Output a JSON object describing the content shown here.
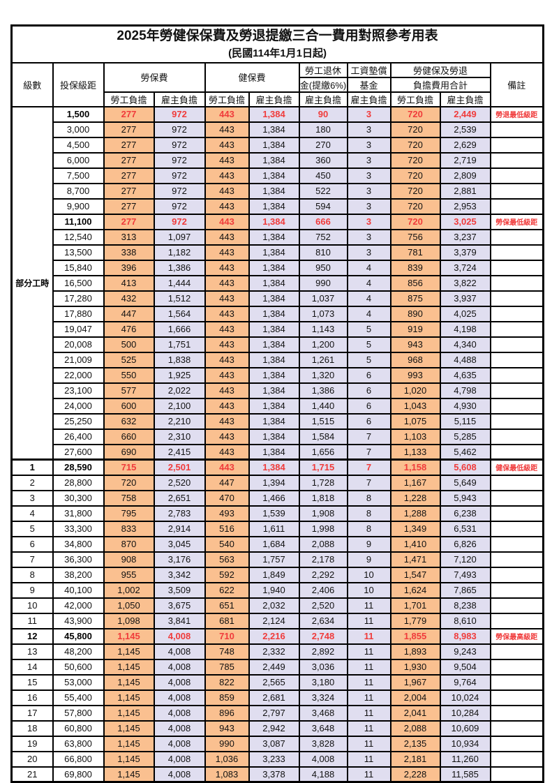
{
  "title": "2025年勞健保保費及勞退提繳三合一費用對照參考用表",
  "subtitle": "(民國114年1月1日起)",
  "colors": {
    "employee_bg": "#FAC090",
    "employer_bg": "#E0DEF0",
    "highlight_red": "#F03B3B"
  },
  "header": {
    "level": "級數",
    "bracket": "投保級距",
    "labor_insurance": "勞保費",
    "health_insurance": "健保費",
    "pension_line1": "勞工退休",
    "pension_line2": "金(提繳6%)",
    "wage_fund_line1": "工資墊償",
    "wage_fund_line2": "基金",
    "total_line1": "勞健保及勞退",
    "total_line2": "負擔費用合計",
    "remark": "備註",
    "employee": "勞工負擔",
    "employer": "雇主負擔"
  },
  "part_time_label": "部分工時",
  "part_time_rowspan": 23,
  "rows": [
    {
      "level": "",
      "bracket": "1,500",
      "li_emp": "277",
      "li_er": "972",
      "hi_emp": "443",
      "hi_er": "1,384",
      "pension": "90",
      "fund": "3",
      "tot_emp": "720",
      "tot_er": "2,449",
      "note": "勞退最低級距",
      "highlight": true,
      "sep": false
    },
    {
      "level": "",
      "bracket": "3,000",
      "li_emp": "277",
      "li_er": "972",
      "hi_emp": "443",
      "hi_er": "1,384",
      "pension": "180",
      "fund": "3",
      "tot_emp": "720",
      "tot_er": "2,539",
      "note": "",
      "highlight": false,
      "sep": false
    },
    {
      "level": "",
      "bracket": "4,500",
      "li_emp": "277",
      "li_er": "972",
      "hi_emp": "443",
      "hi_er": "1,384",
      "pension": "270",
      "fund": "3",
      "tot_emp": "720",
      "tot_er": "2,629",
      "note": "",
      "highlight": false,
      "sep": false
    },
    {
      "level": "",
      "bracket": "6,000",
      "li_emp": "277",
      "li_er": "972",
      "hi_emp": "443",
      "hi_er": "1,384",
      "pension": "360",
      "fund": "3",
      "tot_emp": "720",
      "tot_er": "2,719",
      "note": "",
      "highlight": false,
      "sep": false
    },
    {
      "level": "",
      "bracket": "7,500",
      "li_emp": "277",
      "li_er": "972",
      "hi_emp": "443",
      "hi_er": "1,384",
      "pension": "450",
      "fund": "3",
      "tot_emp": "720",
      "tot_er": "2,809",
      "note": "",
      "highlight": false,
      "sep": false
    },
    {
      "level": "",
      "bracket": "8,700",
      "li_emp": "277",
      "li_er": "972",
      "hi_emp": "443",
      "hi_er": "1,384",
      "pension": "522",
      "fund": "3",
      "tot_emp": "720",
      "tot_er": "2,881",
      "note": "",
      "highlight": false,
      "sep": false
    },
    {
      "level": "",
      "bracket": "9,900",
      "li_emp": "277",
      "li_er": "972",
      "hi_emp": "443",
      "hi_er": "1,384",
      "pension": "594",
      "fund": "3",
      "tot_emp": "720",
      "tot_er": "2,953",
      "note": "",
      "highlight": false,
      "sep": false
    },
    {
      "level": "",
      "bracket": "11,100",
      "li_emp": "277",
      "li_er": "972",
      "hi_emp": "443",
      "hi_er": "1,384",
      "pension": "666",
      "fund": "3",
      "tot_emp": "720",
      "tot_er": "3,025",
      "note": "勞保最低級距",
      "highlight": true,
      "sep": false
    },
    {
      "level": "",
      "bracket": "12,540",
      "li_emp": "313",
      "li_er": "1,097",
      "hi_emp": "443",
      "hi_er": "1,384",
      "pension": "752",
      "fund": "3",
      "tot_emp": "756",
      "tot_er": "3,237",
      "note": "",
      "highlight": false,
      "sep": false
    },
    {
      "level": "",
      "bracket": "13,500",
      "li_emp": "338",
      "li_er": "1,182",
      "hi_emp": "443",
      "hi_er": "1,384",
      "pension": "810",
      "fund": "3",
      "tot_emp": "781",
      "tot_er": "3,379",
      "note": "",
      "highlight": false,
      "sep": false
    },
    {
      "level": "",
      "bracket": "15,840",
      "li_emp": "396",
      "li_er": "1,386",
      "hi_emp": "443",
      "hi_er": "1,384",
      "pension": "950",
      "fund": "4",
      "tot_emp": "839",
      "tot_er": "3,724",
      "note": "",
      "highlight": false,
      "sep": false
    },
    {
      "level": "",
      "bracket": "16,500",
      "li_emp": "413",
      "li_er": "1,444",
      "hi_emp": "443",
      "hi_er": "1,384",
      "pension": "990",
      "fund": "4",
      "tot_emp": "856",
      "tot_er": "3,822",
      "note": "",
      "highlight": false,
      "sep": false
    },
    {
      "level": "",
      "bracket": "17,280",
      "li_emp": "432",
      "li_er": "1,512",
      "hi_emp": "443",
      "hi_er": "1,384",
      "pension": "1,037",
      "fund": "4",
      "tot_emp": "875",
      "tot_er": "3,937",
      "note": "",
      "highlight": false,
      "sep": false
    },
    {
      "level": "",
      "bracket": "17,880",
      "li_emp": "447",
      "li_er": "1,564",
      "hi_emp": "443",
      "hi_er": "1,384",
      "pension": "1,073",
      "fund": "4",
      "tot_emp": "890",
      "tot_er": "4,025",
      "note": "",
      "highlight": false,
      "sep": false
    },
    {
      "level": "",
      "bracket": "19,047",
      "li_emp": "476",
      "li_er": "1,666",
      "hi_emp": "443",
      "hi_er": "1,384",
      "pension": "1,143",
      "fund": "5",
      "tot_emp": "919",
      "tot_er": "4,198",
      "note": "",
      "highlight": false,
      "sep": false
    },
    {
      "level": "",
      "bracket": "20,008",
      "li_emp": "500",
      "li_er": "1,751",
      "hi_emp": "443",
      "hi_er": "1,384",
      "pension": "1,200",
      "fund": "5",
      "tot_emp": "943",
      "tot_er": "4,340",
      "note": "",
      "highlight": false,
      "sep": false
    },
    {
      "level": "",
      "bracket": "21,009",
      "li_emp": "525",
      "li_er": "1,838",
      "hi_emp": "443",
      "hi_er": "1,384",
      "pension": "1,261",
      "fund": "5",
      "tot_emp": "968",
      "tot_er": "4,488",
      "note": "",
      "highlight": false,
      "sep": false
    },
    {
      "level": "",
      "bracket": "22,000",
      "li_emp": "550",
      "li_er": "1,925",
      "hi_emp": "443",
      "hi_er": "1,384",
      "pension": "1,320",
      "fund": "6",
      "tot_emp": "993",
      "tot_er": "4,635",
      "note": "",
      "highlight": false,
      "sep": false
    },
    {
      "level": "",
      "bracket": "23,100",
      "li_emp": "577",
      "li_er": "2,022",
      "hi_emp": "443",
      "hi_er": "1,384",
      "pension": "1,386",
      "fund": "6",
      "tot_emp": "1,020",
      "tot_er": "4,798",
      "note": "",
      "highlight": false,
      "sep": false
    },
    {
      "level": "",
      "bracket": "24,000",
      "li_emp": "600",
      "li_er": "2,100",
      "hi_emp": "443",
      "hi_er": "1,384",
      "pension": "1,440",
      "fund": "6",
      "tot_emp": "1,043",
      "tot_er": "4,930",
      "note": "",
      "highlight": false,
      "sep": false
    },
    {
      "level": "",
      "bracket": "25,250",
      "li_emp": "632",
      "li_er": "2,210",
      "hi_emp": "443",
      "hi_er": "1,384",
      "pension": "1,515",
      "fund": "6",
      "tot_emp": "1,075",
      "tot_er": "5,115",
      "note": "",
      "highlight": false,
      "sep": false
    },
    {
      "level": "",
      "bracket": "26,400",
      "li_emp": "660",
      "li_er": "2,310",
      "hi_emp": "443",
      "hi_er": "1,384",
      "pension": "1,584",
      "fund": "7",
      "tot_emp": "1,103",
      "tot_er": "5,285",
      "note": "",
      "highlight": false,
      "sep": false
    },
    {
      "level": "",
      "bracket": "27,600",
      "li_emp": "690",
      "li_er": "2,415",
      "hi_emp": "443",
      "hi_er": "1,384",
      "pension": "1,656",
      "fund": "7",
      "tot_emp": "1,133",
      "tot_er": "5,462",
      "note": "",
      "highlight": false,
      "sep": false
    },
    {
      "level": "1",
      "bracket": "28,590",
      "li_emp": "715",
      "li_er": "2,501",
      "hi_emp": "443",
      "hi_er": "1,384",
      "pension": "1,715",
      "fund": "7",
      "tot_emp": "1,158",
      "tot_er": "5,608",
      "note": "健保最低級距",
      "highlight": true,
      "sep": true
    },
    {
      "level": "2",
      "bracket": "28,800",
      "li_emp": "720",
      "li_er": "2,520",
      "hi_emp": "447",
      "hi_er": "1,394",
      "pension": "1,728",
      "fund": "7",
      "tot_emp": "1,167",
      "tot_er": "5,649",
      "note": "",
      "highlight": false,
      "sep": false
    },
    {
      "level": "3",
      "bracket": "30,300",
      "li_emp": "758",
      "li_er": "2,651",
      "hi_emp": "470",
      "hi_er": "1,466",
      "pension": "1,818",
      "fund": "8",
      "tot_emp": "1,228",
      "tot_er": "5,943",
      "note": "",
      "highlight": false,
      "sep": false
    },
    {
      "level": "4",
      "bracket": "31,800",
      "li_emp": "795",
      "li_er": "2,783",
      "hi_emp": "493",
      "hi_er": "1,539",
      "pension": "1,908",
      "fund": "8",
      "tot_emp": "1,288",
      "tot_er": "6,238",
      "note": "",
      "highlight": false,
      "sep": false
    },
    {
      "level": "5",
      "bracket": "33,300",
      "li_emp": "833",
      "li_er": "2,914",
      "hi_emp": "516",
      "hi_er": "1,611",
      "pension": "1,998",
      "fund": "8",
      "tot_emp": "1,349",
      "tot_er": "6,531",
      "note": "",
      "highlight": false,
      "sep": false
    },
    {
      "level": "6",
      "bracket": "34,800",
      "li_emp": "870",
      "li_er": "3,045",
      "hi_emp": "540",
      "hi_er": "1,684",
      "pension": "2,088",
      "fund": "9",
      "tot_emp": "1,410",
      "tot_er": "6,826",
      "note": "",
      "highlight": false,
      "sep": false
    },
    {
      "level": "7",
      "bracket": "36,300",
      "li_emp": "908",
      "li_er": "3,176",
      "hi_emp": "563",
      "hi_er": "1,757",
      "pension": "2,178",
      "fund": "9",
      "tot_emp": "1,471",
      "tot_er": "7,120",
      "note": "",
      "highlight": false,
      "sep": false
    },
    {
      "level": "8",
      "bracket": "38,200",
      "li_emp": "955",
      "li_er": "3,342",
      "hi_emp": "592",
      "hi_er": "1,849",
      "pension": "2,292",
      "fund": "10",
      "tot_emp": "1,547",
      "tot_er": "7,493",
      "note": "",
      "highlight": false,
      "sep": false
    },
    {
      "level": "9",
      "bracket": "40,100",
      "li_emp": "1,002",
      "li_er": "3,509",
      "hi_emp": "622",
      "hi_er": "1,940",
      "pension": "2,406",
      "fund": "10",
      "tot_emp": "1,624",
      "tot_er": "7,865",
      "note": "",
      "highlight": false,
      "sep": false
    },
    {
      "level": "10",
      "bracket": "42,000",
      "li_emp": "1,050",
      "li_er": "3,675",
      "hi_emp": "651",
      "hi_er": "2,032",
      "pension": "2,520",
      "fund": "11",
      "tot_emp": "1,701",
      "tot_er": "8,238",
      "note": "",
      "highlight": false,
      "sep": false
    },
    {
      "level": "11",
      "bracket": "43,900",
      "li_emp": "1,098",
      "li_er": "3,841",
      "hi_emp": "681",
      "hi_er": "2,124",
      "pension": "2,634",
      "fund": "11",
      "tot_emp": "1,779",
      "tot_er": "8,610",
      "note": "",
      "highlight": false,
      "sep": false
    },
    {
      "level": "12",
      "bracket": "45,800",
      "li_emp": "1,145",
      "li_er": "4,008",
      "hi_emp": "710",
      "hi_er": "2,216",
      "pension": "2,748",
      "fund": "11",
      "tot_emp": "1,855",
      "tot_er": "8,983",
      "note": "勞保最高級距",
      "highlight": true,
      "sep": false
    },
    {
      "level": "13",
      "bracket": "48,200",
      "li_emp": "1,145",
      "li_er": "4,008",
      "hi_emp": "748",
      "hi_er": "2,332",
      "pension": "2,892",
      "fund": "11",
      "tot_emp": "1,893",
      "tot_er": "9,243",
      "note": "",
      "highlight": false,
      "sep": false
    },
    {
      "level": "14",
      "bracket": "50,600",
      "li_emp": "1,145",
      "li_er": "4,008",
      "hi_emp": "785",
      "hi_er": "2,449",
      "pension": "3,036",
      "fund": "11",
      "tot_emp": "1,930",
      "tot_er": "9,504",
      "note": "",
      "highlight": false,
      "sep": false
    },
    {
      "level": "15",
      "bracket": "53,000",
      "li_emp": "1,145",
      "li_er": "4,008",
      "hi_emp": "822",
      "hi_er": "2,565",
      "pension": "3,180",
      "fund": "11",
      "tot_emp": "1,967",
      "tot_er": "9,764",
      "note": "",
      "highlight": false,
      "sep": false
    },
    {
      "level": "16",
      "bracket": "55,400",
      "li_emp": "1,145",
      "li_er": "4,008",
      "hi_emp": "859",
      "hi_er": "2,681",
      "pension": "3,324",
      "fund": "11",
      "tot_emp": "2,004",
      "tot_er": "10,024",
      "note": "",
      "highlight": false,
      "sep": false
    },
    {
      "level": "17",
      "bracket": "57,800",
      "li_emp": "1,145",
      "li_er": "4,008",
      "hi_emp": "896",
      "hi_er": "2,797",
      "pension": "3,468",
      "fund": "11",
      "tot_emp": "2,041",
      "tot_er": "10,284",
      "note": "",
      "highlight": false,
      "sep": false
    },
    {
      "level": "18",
      "bracket": "60,800",
      "li_emp": "1,145",
      "li_er": "4,008",
      "hi_emp": "943",
      "hi_er": "2,942",
      "pension": "3,648",
      "fund": "11",
      "tot_emp": "2,088",
      "tot_er": "10,609",
      "note": "",
      "highlight": false,
      "sep": false
    },
    {
      "level": "19",
      "bracket": "63,800",
      "li_emp": "1,145",
      "li_er": "4,008",
      "hi_emp": "990",
      "hi_er": "3,087",
      "pension": "3,828",
      "fund": "11",
      "tot_emp": "2,135",
      "tot_er": "10,934",
      "note": "",
      "highlight": false,
      "sep": false
    },
    {
      "level": "20",
      "bracket": "66,800",
      "li_emp": "1,145",
      "li_er": "4,008",
      "hi_emp": "1,036",
      "hi_er": "3,233",
      "pension": "4,008",
      "fund": "11",
      "tot_emp": "2,181",
      "tot_er": "11,260",
      "note": "",
      "highlight": false,
      "sep": false
    },
    {
      "level": "21",
      "bracket": "69,800",
      "li_emp": "1,145",
      "li_er": "4,008",
      "hi_emp": "1,083",
      "hi_er": "3,378",
      "pension": "4,188",
      "fund": "11",
      "tot_emp": "2,228",
      "tot_er": "11,585",
      "note": "",
      "highlight": false,
      "sep": false
    }
  ]
}
